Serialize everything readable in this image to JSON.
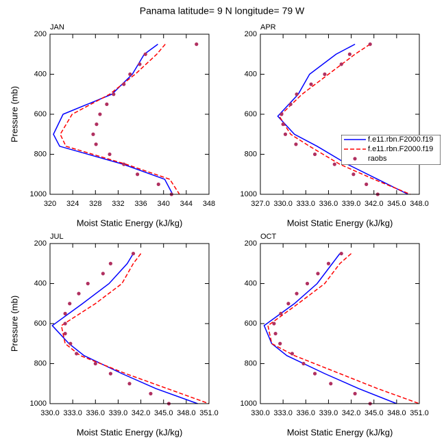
{
  "title": "Panama  latitude= 9 N longitude= 79 W",
  "chart_data": [
    {
      "type": "line",
      "title": "JAN",
      "xlabel": "Moist Static Energy (kJ/kg)",
      "ylabel": "Pressure (mb)",
      "xlim": [
        320,
        348
      ],
      "xticks": [
        320,
        324,
        328,
        332,
        336,
        340,
        344,
        348
      ],
      "ylim": [
        200,
        1000
      ],
      "yticks": [
        200,
        400,
        600,
        800,
        1000
      ],
      "y_inverted": true,
      "series": [
        {
          "color": "#0000ff",
          "style": "solid",
          "y": [
            250,
            300,
            400,
            500,
            600,
            700,
            760,
            850,
            925,
            1000
          ],
          "x": [
            339.0,
            336.6,
            334.5,
            330.9,
            322.3,
            320.6,
            321.7,
            332.9,
            340.2,
            341.6
          ]
        },
        {
          "color": "#ff0000",
          "style": "dashed",
          "y": [
            250,
            300,
            400,
            500,
            600,
            700,
            760,
            850,
            925,
            1000
          ],
          "x": [
            340.3,
            338.8,
            335.0,
            330.5,
            323.9,
            321.8,
            322.8,
            333.4,
            341.1,
            342.8
          ]
        },
        {
          "color": "#b03060",
          "style": "dots",
          "y": [
            250,
            300,
            350,
            400,
            450,
            500,
            550,
            600,
            650,
            700,
            750,
            800,
            850,
            900,
            950,
            1000
          ],
          "x": [
            345.8,
            336.8,
            335.8,
            334.1,
            333.0,
            331.2,
            330.0,
            328.8,
            328.2,
            327.6,
            328.1,
            330.5,
            333.0,
            335.4,
            339.1,
            341.4
          ]
        }
      ]
    },
    {
      "type": "line",
      "title": "APR",
      "xlabel": "Moist Static Energy (kJ/kg)",
      "xlim": [
        327,
        348
      ],
      "xticks": [
        {
          "value": 327,
          "label": "327.0"
        },
        {
          "value": 330,
          "label": "330.0"
        },
        {
          "value": 333,
          "label": "333.0"
        },
        {
          "value": 336,
          "label": "336.0"
        },
        {
          "value": 339,
          "label": "339.0"
        },
        {
          "value": 342,
          "label": "342.0"
        },
        {
          "value": 345,
          "label": "345.0"
        },
        {
          "value": 348,
          "label": "348.0"
        }
      ],
      "ylim": [
        200,
        1000
      ],
      "yticks": [
        200,
        400,
        600,
        800,
        1000
      ],
      "y_inverted": true,
      "legend": "right",
      "series": [
        {
          "name": "f.e11.rbn.F2000.f19",
          "color": "#0000ff",
          "style": "solid",
          "y": [
            250,
            300,
            400,
            500,
            610,
            700,
            760,
            850,
            925,
            1000
          ],
          "x": [
            339.5,
            337.0,
            333.5,
            332.0,
            329.3,
            331.5,
            334.5,
            338.5,
            342.5,
            346.5
          ]
        },
        {
          "name": "f.e11.rbn.F2000.f19",
          "color": "#ff0000",
          "style": "dashed",
          "y": [
            250,
            300,
            400,
            500,
            610,
            700,
            760,
            850,
            925,
            1000
          ],
          "x": [
            341.5,
            339.5,
            336.0,
            332.5,
            329.5,
            331.0,
            333.5,
            337.5,
            342.0,
            346.8
          ]
        },
        {
          "name": "raobs",
          "color": "#b03060",
          "style": "dots",
          "y": [
            250,
            300,
            350,
            400,
            450,
            500,
            550,
            600,
            650,
            700,
            750,
            800,
            850,
            900,
            950,
            1000
          ],
          "x": [
            341.5,
            338.8,
            337.7,
            335.5,
            333.7,
            331.8,
            331.0,
            329.8,
            330.0,
            330.3,
            331.7,
            334.2,
            336.8,
            339.3,
            341.0,
            342.5
          ]
        }
      ]
    },
    {
      "type": "line",
      "title": "JUL",
      "xlabel": "Moist Static Energy (kJ/kg)",
      "ylabel": "Pressure (mb)",
      "xlim": [
        330,
        351
      ],
      "xticks": [
        {
          "value": 330,
          "label": "330.0"
        },
        {
          "value": 333,
          "label": "333.0"
        },
        {
          "value": 336,
          "label": "336.0"
        },
        {
          "value": 339,
          "label": "339.0"
        },
        {
          "value": 342,
          "label": "342.0"
        },
        {
          "value": 345,
          "label": "345.0"
        },
        {
          "value": 348,
          "label": "348.0"
        },
        {
          "value": 351,
          "label": "351.0"
        }
      ],
      "ylim": [
        200,
        1000
      ],
      "yticks": [
        200,
        400,
        600,
        800,
        1000
      ],
      "y_inverted": true,
      "series": [
        {
          "color": "#0000ff",
          "style": "solid",
          "y": [
            250,
            300,
            400,
            500,
            610,
            700,
            760,
            850,
            925,
            1000
          ],
          "x": [
            341.0,
            340.2,
            337.8,
            334.3,
            330.3,
            332.5,
            334.5,
            339.5,
            344.0,
            349.5
          ]
        },
        {
          "color": "#ff0000",
          "style": "dashed",
          "y": [
            250,
            300,
            400,
            500,
            610,
            700,
            760,
            850,
            925,
            1000
          ],
          "x": [
            342.0,
            341.0,
            339.5,
            336.0,
            331.5,
            332.0,
            334.0,
            340.0,
            345.5,
            351.0
          ]
        },
        {
          "color": "#b03060",
          "style": "dots",
          "y": [
            250,
            300,
            350,
            400,
            450,
            500,
            550,
            600,
            650,
            700,
            750,
            800,
            850,
            900,
            950,
            1000
          ],
          "x": [
            341.0,
            338.0,
            337.0,
            335.0,
            333.8,
            332.6,
            332.0,
            332.0,
            332.0,
            332.7,
            333.5,
            336.0,
            338.0,
            340.5,
            343.3,
            345.7
          ]
        }
      ]
    },
    {
      "type": "line",
      "title": "OCT",
      "xlabel": "Moist Static Energy (kJ/kg)",
      "xlim": [
        330,
        351
      ],
      "xticks": [
        {
          "value": 330,
          "label": "330.0"
        },
        {
          "value": 333,
          "label": "333.0"
        },
        {
          "value": 336,
          "label": "336.0"
        },
        {
          "value": 339,
          "label": "339.0"
        },
        {
          "value": 342,
          "label": "342.0"
        },
        {
          "value": 345,
          "label": "345.0"
        },
        {
          "value": 348,
          "label": "348.0"
        },
        {
          "value": 351,
          "label": "351.0"
        }
      ],
      "ylim": [
        200,
        1000
      ],
      "yticks": [
        200,
        400,
        600,
        800,
        1000
      ],
      "y_inverted": true,
      "series": [
        {
          "color": "#0000ff",
          "style": "solid",
          "y": [
            250,
            300,
            400,
            500,
            610,
            700,
            760,
            850,
            925,
            1000
          ],
          "x": [
            340.5,
            339.5,
            337.5,
            334.5,
            330.5,
            331.5,
            333.5,
            338.5,
            343.0,
            348.0
          ]
        },
        {
          "color": "#ff0000",
          "style": "dashed",
          "y": [
            250,
            300,
            400,
            500,
            610,
            700,
            760,
            850,
            925,
            1000
          ],
          "x": [
            342.0,
            340.5,
            338.5,
            335.0,
            331.0,
            331.5,
            334.5,
            340.5,
            345.5,
            351.0
          ]
        },
        {
          "color": "#b03060",
          "style": "dots",
          "y": [
            250,
            300,
            350,
            400,
            450,
            500,
            550,
            600,
            650,
            700,
            750,
            800,
            850,
            900,
            950,
            1000
          ],
          "x": [
            340.7,
            339.0,
            337.6,
            336.2,
            334.8,
            333.7,
            332.7,
            331.8,
            332.0,
            332.6,
            334.2,
            335.7,
            337.2,
            339.3,
            342.5,
            344.5
          ]
        }
      ]
    }
  ]
}
